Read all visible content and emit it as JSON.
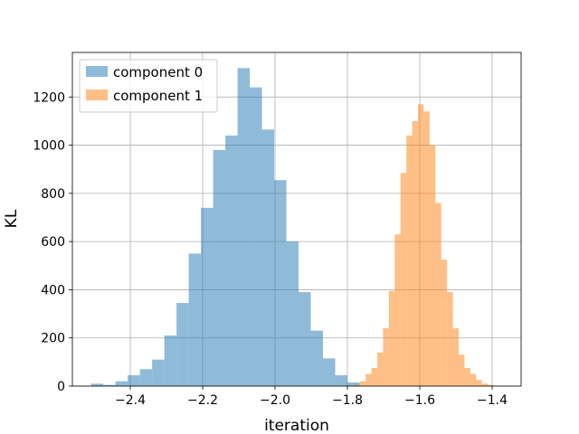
{
  "chart_data": {
    "type": "histogram",
    "title": "",
    "xlabel": "iteration",
    "ylabel": "KL",
    "xlim": [
      -2.56,
      -1.32
    ],
    "ylim": [
      0,
      1385
    ],
    "grid": true,
    "legend_position": "top-left",
    "xticks": [
      -2.4,
      -2.2,
      -2.0,
      -1.8,
      -1.6,
      -1.4
    ],
    "xtick_labels": [
      "−2.4",
      "−2.2",
      "−2.0",
      "−1.8",
      "−1.6",
      "−1.4"
    ],
    "yticks": [
      0,
      200,
      400,
      600,
      800,
      1000,
      1200
    ],
    "ytick_labels": [
      "0",
      "200",
      "400",
      "600",
      "800",
      "1000",
      "1200"
    ],
    "series": [
      {
        "name": "component 0",
        "color": "#1f77b4",
        "opacity": 0.5,
        "bin_start": -2.5083,
        "bin_width": 0.03373,
        "counts": [
          10,
          5,
          20,
          45,
          70,
          110,
          210,
          345,
          550,
          740,
          980,
          1040,
          1320,
          1240,
          1065,
          855,
          600,
          390,
          230,
          115,
          45,
          15
        ]
      },
      {
        "name": "component 1",
        "color": "#ff7f0e",
        "opacity": 0.5,
        "bin_start": -1.7817,
        "bin_width": 0.01607,
        "counts": [
          5,
          20,
          50,
          75,
          140,
          240,
          395,
          630,
          885,
          1040,
          1100,
          1170,
          1140,
          1000,
          760,
          525,
          390,
          240,
          130,
          75,
          50,
          25,
          10,
          5
        ]
      }
    ]
  }
}
